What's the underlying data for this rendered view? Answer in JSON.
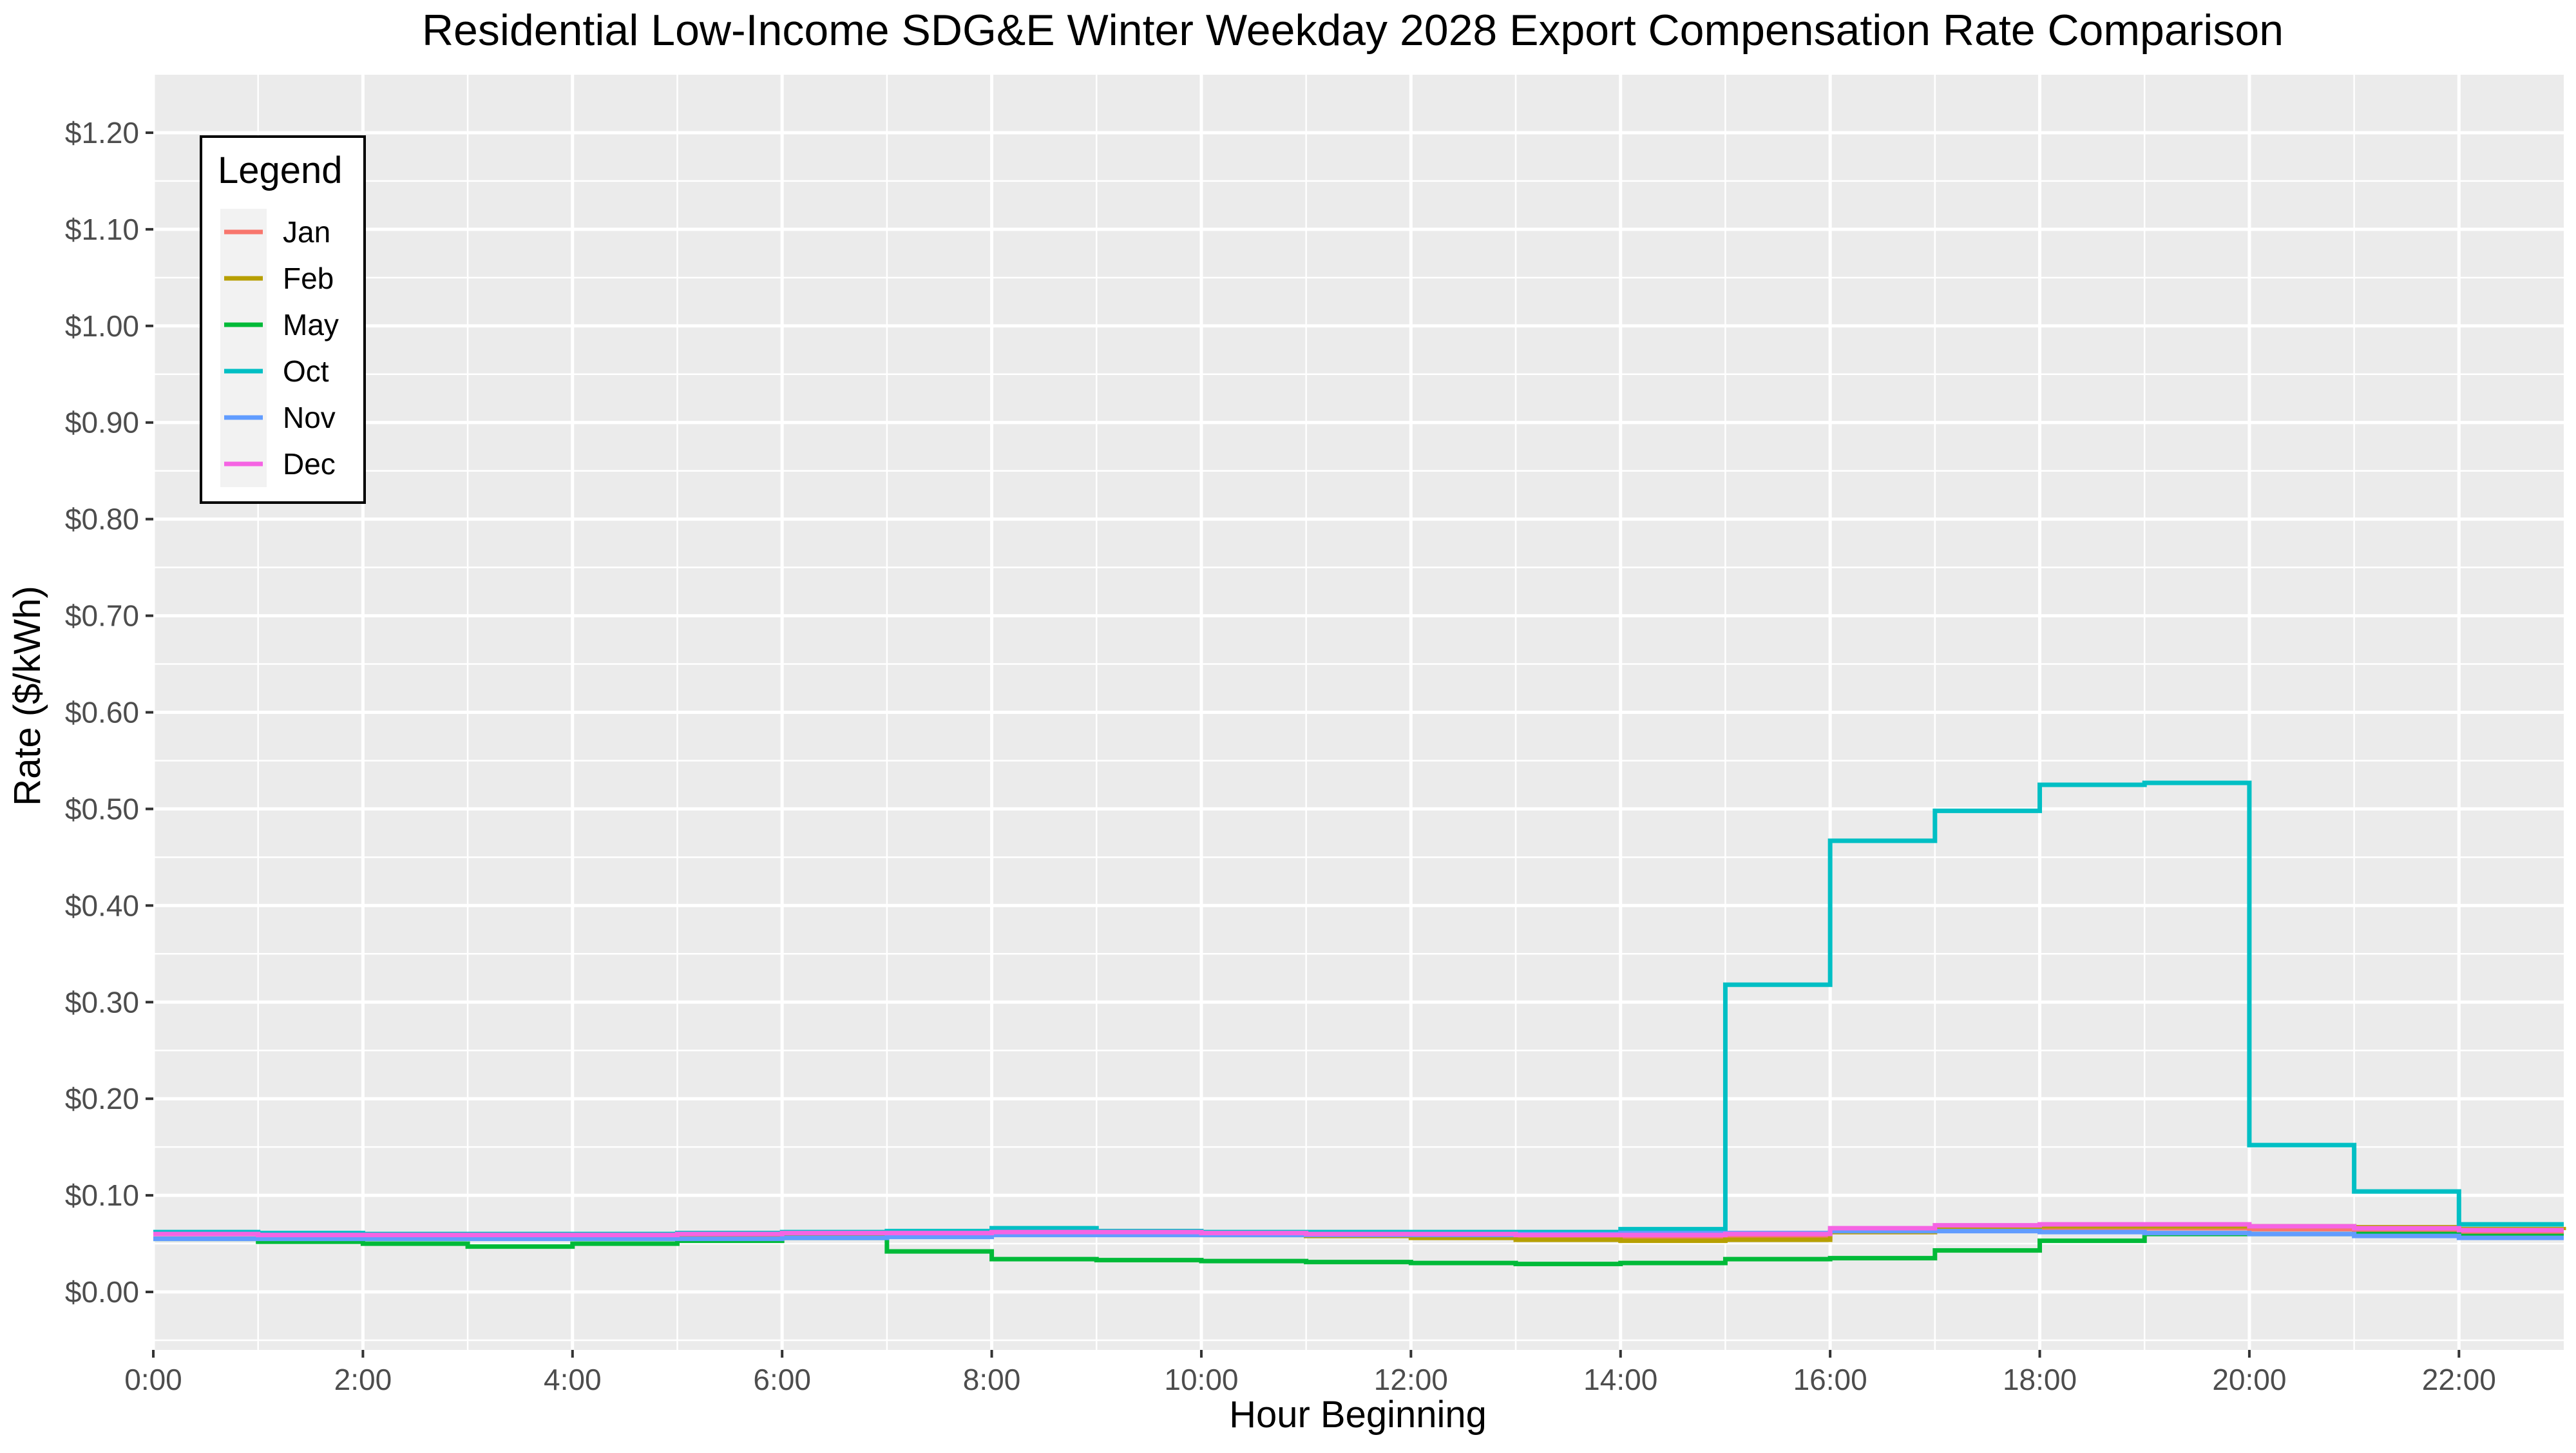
{
  "chart_data": {
    "type": "line",
    "step": true,
    "title": "Residential Low-Income SDG&E Winter Weekday 2028 Export Compensation Rate Comparison",
    "xlabel": "Hour Beginning",
    "ylabel": "Rate ($/kWh)",
    "xlim": [
      0,
      23
    ],
    "ylim": [
      -0.06,
      1.26
    ],
    "x": [
      0,
      1,
      2,
      3,
      4,
      5,
      6,
      7,
      8,
      9,
      10,
      11,
      12,
      13,
      14,
      15,
      16,
      17,
      18,
      19,
      20,
      21,
      22,
      23
    ],
    "x_ticks": [
      0,
      2,
      4,
      6,
      8,
      10,
      12,
      14,
      16,
      18,
      20,
      22
    ],
    "x_tick_labels": [
      "0:00",
      "2:00",
      "4:00",
      "6:00",
      "8:00",
      "10:00",
      "12:00",
      "14:00",
      "16:00",
      "18:00",
      "20:00",
      "22:00"
    ],
    "y_ticks": [
      0,
      0.1,
      0.2,
      0.3,
      0.4,
      0.5,
      0.6,
      0.7,
      0.8,
      0.9,
      1.0,
      1.1,
      1.2
    ],
    "y_tick_labels": [
      "$0.00",
      "$0.10",
      "$0.20",
      "$0.30",
      "$0.40",
      "$0.50",
      "$0.60",
      "$0.70",
      "$0.80",
      "$0.90",
      "$1.00",
      "$1.10",
      "$1.20"
    ],
    "grid": true,
    "legend": {
      "title": "Legend",
      "position": "top-left"
    },
    "series": [
      {
        "name": "Jan",
        "color": "#F8766D",
        "values": [
          0.061,
          0.06,
          0.059,
          0.059,
          0.059,
          0.06,
          0.06,
          0.061,
          0.062,
          0.061,
          0.06,
          0.059,
          0.057,
          0.055,
          0.055,
          0.056,
          0.062,
          0.065,
          0.066,
          0.066,
          0.065,
          0.064,
          0.062,
          0.062
        ]
      },
      {
        "name": "Feb",
        "color": "#B79F00",
        "values": [
          0.06,
          0.059,
          0.058,
          0.057,
          0.057,
          0.058,
          0.059,
          0.06,
          0.061,
          0.06,
          0.059,
          0.058,
          0.056,
          0.054,
          0.053,
          0.054,
          0.062,
          0.066,
          0.068,
          0.068,
          0.068,
          0.067,
          0.065,
          0.064
        ]
      },
      {
        "name": "May",
        "color": "#00BA38",
        "values": [
          0.055,
          0.052,
          0.05,
          0.047,
          0.05,
          0.053,
          0.056,
          0.042,
          0.034,
          0.033,
          0.032,
          0.031,
          0.03,
          0.029,
          0.03,
          0.034,
          0.035,
          0.043,
          0.053,
          0.06,
          0.06,
          0.06,
          0.058,
          0.058
        ]
      },
      {
        "name": "Oct",
        "color": "#00BFC4",
        "values": [
          0.062,
          0.061,
          0.06,
          0.06,
          0.06,
          0.061,
          0.062,
          0.063,
          0.066,
          0.063,
          0.062,
          0.062,
          0.062,
          0.062,
          0.065,
          0.318,
          0.467,
          0.498,
          0.525,
          0.527,
          0.152,
          0.104,
          0.07,
          0.07
        ]
      },
      {
        "name": "Nov",
        "color": "#619CFF",
        "values": [
          0.055,
          0.055,
          0.055,
          0.055,
          0.055,
          0.055,
          0.056,
          0.057,
          0.059,
          0.059,
          0.059,
          0.059,
          0.059,
          0.06,
          0.061,
          0.061,
          0.063,
          0.063,
          0.062,
          0.061,
          0.06,
          0.058,
          0.056,
          0.056
        ]
      },
      {
        "name": "Dec",
        "color": "#F564E3",
        "values": [
          0.06,
          0.059,
          0.059,
          0.059,
          0.059,
          0.06,
          0.061,
          0.061,
          0.062,
          0.062,
          0.061,
          0.06,
          0.06,
          0.059,
          0.059,
          0.06,
          0.066,
          0.069,
          0.07,
          0.07,
          0.068,
          0.066,
          0.064,
          0.064
        ]
      }
    ]
  }
}
